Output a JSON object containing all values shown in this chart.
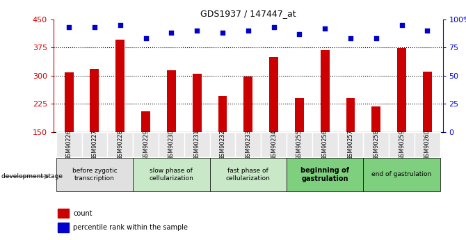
{
  "title": "GDS1937 / 147447_at",
  "samples": [
    "GSM90226",
    "GSM90227",
    "GSM90228",
    "GSM90229",
    "GSM90230",
    "GSM90231",
    "GSM90232",
    "GSM90233",
    "GSM90234",
    "GSM90255",
    "GSM90256",
    "GSM90257",
    "GSM90258",
    "GSM90259",
    "GSM90260"
  ],
  "counts": [
    308,
    318,
    395,
    205,
    315,
    305,
    245,
    298,
    350,
    240,
    368,
    240,
    218,
    373,
    310
  ],
  "percentile": [
    93,
    93,
    95,
    83,
    88,
    90,
    88,
    90,
    93,
    87,
    92,
    83,
    83,
    95,
    90
  ],
  "ylim_left": [
    150,
    450
  ],
  "ylim_right": [
    0,
    100
  ],
  "yticks_left": [
    150,
    225,
    300,
    375,
    450
  ],
  "yticks_right": [
    0,
    25,
    50,
    75,
    100
  ],
  "stages": [
    {
      "label": "before zygotic\ntranscription",
      "indices": [
        0,
        1,
        2
      ],
      "color": "#e0e0e0",
      "bold": false
    },
    {
      "label": "slow phase of\ncellularization",
      "indices": [
        3,
        4,
        5
      ],
      "color": "#c8e8c8",
      "bold": false
    },
    {
      "label": "fast phase of\ncellularization",
      "indices": [
        6,
        7,
        8
      ],
      "color": "#c8e8c8",
      "bold": false
    },
    {
      "label": "beginning of\ngastrulation",
      "indices": [
        9,
        10,
        11
      ],
      "color": "#7ecf7e",
      "bold": true
    },
    {
      "label": "end of gastrulation",
      "indices": [
        12,
        13,
        14
      ],
      "color": "#7ecf7e",
      "bold": false
    }
  ],
  "bar_color": "#cc0000",
  "dot_color": "#0000cc",
  "tick_color_left": "#cc0000",
  "tick_color_right": "#0000cc",
  "bar_width": 0.35,
  "legend_red_label": "count",
  "legend_blue_label": "percentile rank within the sample",
  "dev_stage_label": "development stage"
}
